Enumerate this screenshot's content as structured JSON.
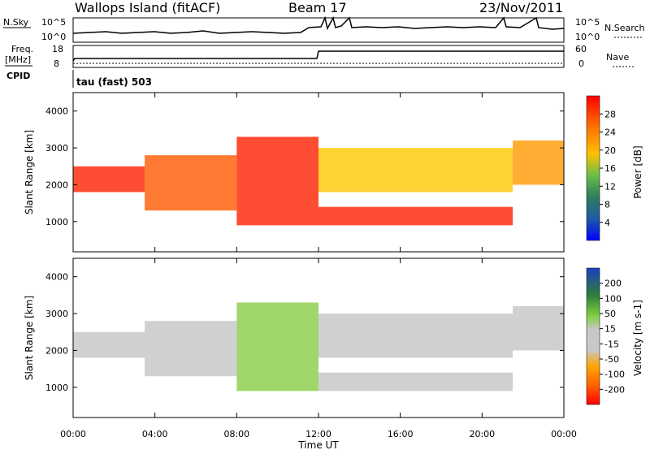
{
  "header": {
    "station": "Wallops Island (fitACF)",
    "beam": "Beam 17",
    "date": "23/Nov/2011"
  },
  "params": {
    "nsky_label": "N.Sky",
    "nsky_ticks": [
      "10^5",
      "10^0"
    ],
    "nsearch_label": "N.Search",
    "nsearch_ticks": [
      "10^5",
      "10^0"
    ],
    "freq_label": "Freq.",
    "freq_unit": "[MHz]",
    "freq_ticks": [
      "18",
      "8"
    ],
    "nave_label": "Nave",
    "nave_ticks": [
      "60",
      "0"
    ],
    "cpid_label": "CPID",
    "cpid_value": "tau (fast) 503"
  },
  "chart_data": [
    {
      "type": "heatmap",
      "name_in_image": "Power",
      "ylabel": "Slant Range [km]",
      "colorbar_label": "Power [dB]",
      "colorbar_ticks": [
        "28",
        "24",
        "20",
        "16",
        "12",
        "8",
        "4"
      ],
      "colorbar_colors": [
        "#ff0000",
        "#ff4500",
        "#ff8c00",
        "#ffa500",
        "#ffd700",
        "#9acd32",
        "#2e8b57",
        "#1e5aa8",
        "#0000ff"
      ],
      "ylim": [
        180,
        4500
      ],
      "y_ticks": [
        "4000",
        "3000",
        "2000",
        "1000"
      ],
      "echo_bands": [
        {
          "t_start": 0,
          "t_end": 3.5,
          "range_low": 1800,
          "range_high": 2500,
          "power_db": 28
        },
        {
          "t_start": 3.5,
          "t_end": 8.0,
          "range_low": 1300,
          "range_high": 2800,
          "power_db": 26
        },
        {
          "t_start": 8.0,
          "t_end": 12.0,
          "range_low": 900,
          "range_high": 3300,
          "power_db": 28
        },
        {
          "t_start": 12.0,
          "t_end": 21.5,
          "range_low": 900,
          "range_high": 1400,
          "power_db": 30
        },
        {
          "t_start": 12.0,
          "t_end": 21.5,
          "range_low": 1800,
          "range_high": 3000,
          "power_db": 18
        },
        {
          "t_start": 21.5,
          "t_end": 24.0,
          "range_low": 2000,
          "range_high": 3200,
          "power_db": 22
        }
      ]
    },
    {
      "type": "heatmap",
      "name_in_image": "Velocity",
      "ylabel": "Slant Range [km]",
      "xlabel": "Time UT",
      "colorbar_label": "Velocity [m s-1]",
      "colorbar_ticks": [
        "200",
        "100",
        "50",
        "15",
        "-15",
        "-50",
        "-100",
        "-200"
      ],
      "colorbar_colors": [
        "#2040c0",
        "#3a7a3a",
        "#7fd040",
        "#c8c8c8",
        "#c8c8c8",
        "#ffa500",
        "#ff6000",
        "#ff0000"
      ],
      "ylim": [
        180,
        4500
      ],
      "y_ticks": [
        "4000",
        "3000",
        "2000",
        "1000"
      ],
      "x_ticks": [
        "00:00",
        "04:00",
        "08:00",
        "12:00",
        "16:00",
        "20:00",
        "00:00"
      ],
      "xlim_hours": [
        0,
        24
      ]
    }
  ]
}
